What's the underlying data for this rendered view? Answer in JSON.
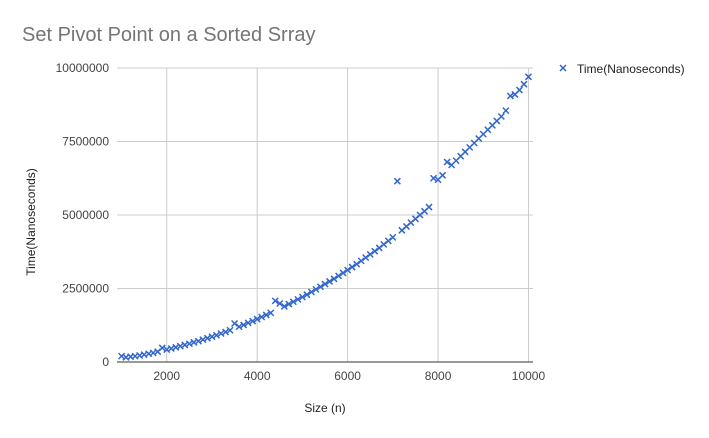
{
  "chart_data": {
    "type": "scatter",
    "title": "Set Pivot Point on a Sorted Srray",
    "xlabel": "Size (n)",
    "ylabel": "Time(Nanoseconds)",
    "xlim": [
      900,
      10100
    ],
    "ylim": [
      0,
      10000000
    ],
    "x_ticks": [
      2000,
      4000,
      6000,
      8000,
      10000
    ],
    "y_ticks": [
      0,
      2500000,
      5000000,
      7500000,
      10000000
    ],
    "x_tick_labels": [
      "2000",
      "4000",
      "6000",
      "8000",
      "10000"
    ],
    "y_tick_labels": [
      "0",
      "2500000",
      "5000000",
      "7500000",
      "10000000"
    ],
    "grid": true,
    "legend_position": "right",
    "marker": "x",
    "series": [
      {
        "name": "Time(Nanoseconds)",
        "color": "#3366cc",
        "points": [
          [
            1000,
            200000
          ],
          [
            1100,
            160000
          ],
          [
            1200,
            180000
          ],
          [
            1300,
            200000
          ],
          [
            1400,
            220000
          ],
          [
            1500,
            250000
          ],
          [
            1600,
            280000
          ],
          [
            1700,
            310000
          ],
          [
            1800,
            350000
          ],
          [
            1900,
            480000
          ],
          [
            2000,
            420000
          ],
          [
            2100,
            460000
          ],
          [
            2200,
            500000
          ],
          [
            2300,
            540000
          ],
          [
            2400,
            580000
          ],
          [
            2500,
            620000
          ],
          [
            2600,
            670000
          ],
          [
            2700,
            710000
          ],
          [
            2800,
            760000
          ],
          [
            2900,
            810000
          ],
          [
            3000,
            860000
          ],
          [
            3100,
            910000
          ],
          [
            3200,
            970000
          ],
          [
            3300,
            1020000
          ],
          [
            3400,
            1080000
          ],
          [
            3500,
            1310000
          ],
          [
            3600,
            1200000
          ],
          [
            3700,
            1260000
          ],
          [
            3800,
            1330000
          ],
          [
            3900,
            1390000
          ],
          [
            4000,
            1460000
          ],
          [
            4100,
            1530000
          ],
          [
            4200,
            1600000
          ],
          [
            4300,
            1670000
          ],
          [
            4400,
            2080000
          ],
          [
            4500,
            1990000
          ],
          [
            4600,
            1890000
          ],
          [
            4700,
            1970000
          ],
          [
            4800,
            2050000
          ],
          [
            4900,
            2130000
          ],
          [
            5000,
            2210000
          ],
          [
            5100,
            2290000
          ],
          [
            5200,
            2380000
          ],
          [
            5300,
            2470000
          ],
          [
            5400,
            2560000
          ],
          [
            5500,
            2650000
          ],
          [
            5600,
            2740000
          ],
          [
            5700,
            2830000
          ],
          [
            5800,
            2930000
          ],
          [
            5900,
            3030000
          ],
          [
            6000,
            3130000
          ],
          [
            6100,
            3230000
          ],
          [
            6200,
            3330000
          ],
          [
            6300,
            3440000
          ],
          [
            6400,
            3550000
          ],
          [
            6500,
            3660000
          ],
          [
            6600,
            3770000
          ],
          [
            6700,
            3880000
          ],
          [
            6800,
            4000000
          ],
          [
            6900,
            4120000
          ],
          [
            7000,
            4240000
          ],
          [
            7100,
            6150000
          ],
          [
            7200,
            4480000
          ],
          [
            7300,
            4610000
          ],
          [
            7400,
            4740000
          ],
          [
            7500,
            4870000
          ],
          [
            7600,
            5000000
          ],
          [
            7700,
            5130000
          ],
          [
            7800,
            5270000
          ],
          [
            7900,
            6250000
          ],
          [
            8000,
            6200000
          ],
          [
            8100,
            6350000
          ],
          [
            8200,
            6800000
          ],
          [
            8300,
            6700000
          ],
          [
            8400,
            6850000
          ],
          [
            8500,
            7000000
          ],
          [
            8600,
            7150000
          ],
          [
            8700,
            7300000
          ],
          [
            8800,
            7450000
          ],
          [
            8900,
            7600000
          ],
          [
            9000,
            7750000
          ],
          [
            9100,
            7900000
          ],
          [
            9200,
            8050000
          ],
          [
            9300,
            8200000
          ],
          [
            9400,
            8350000
          ],
          [
            9500,
            8550000
          ],
          [
            9600,
            9050000
          ],
          [
            9700,
            9100000
          ],
          [
            9800,
            9250000
          ],
          [
            9900,
            9450000
          ],
          [
            10000,
            9700000
          ]
        ]
      }
    ]
  }
}
